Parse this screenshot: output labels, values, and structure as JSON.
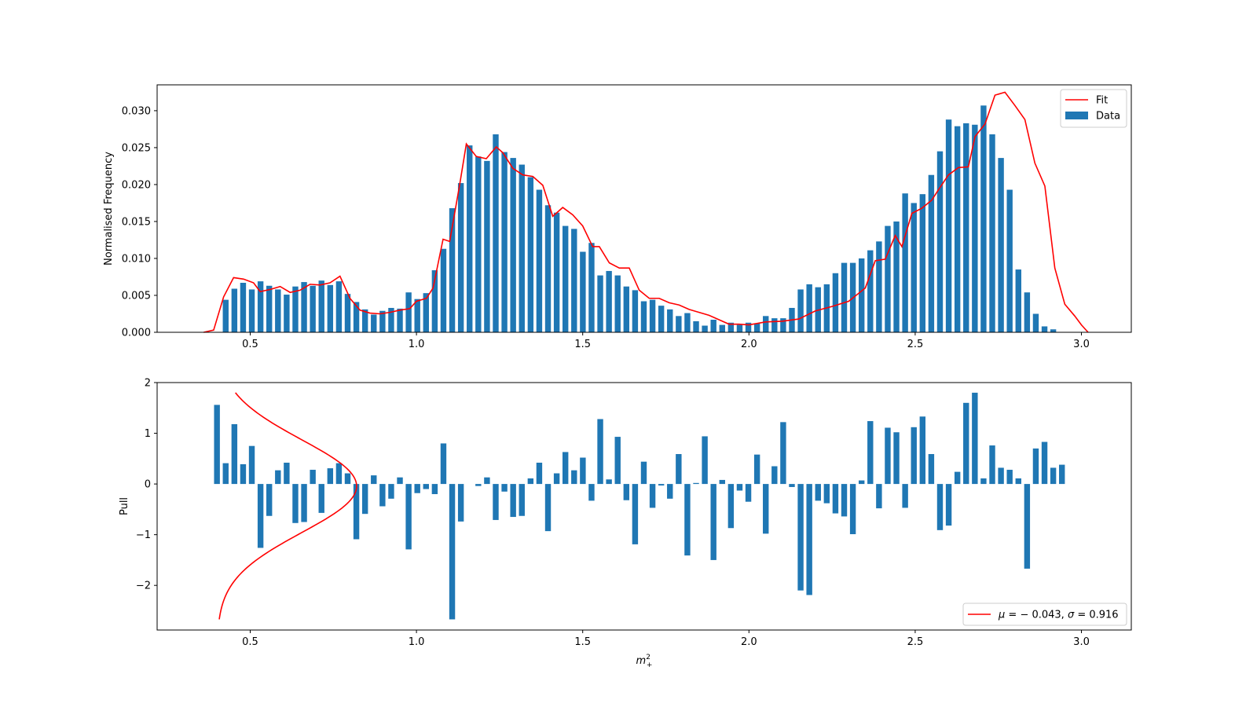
{
  "chart_data": [
    {
      "type": "bar",
      "panel": "top",
      "title": "",
      "xlabel": "",
      "ylabel": "Normalised Frequency",
      "xlim": [
        0.22,
        3.15
      ],
      "ylim": [
        0.0,
        0.0335
      ],
      "xticks": [
        0.5,
        1.0,
        1.5,
        2.0,
        2.5,
        3.0
      ],
      "xtick_labels": [
        "0.5",
        "1.0",
        "1.5",
        "2.0",
        "2.5",
        "3.0"
      ],
      "yticks": [
        0.0,
        0.005,
        0.01,
        0.015,
        0.02,
        0.025,
        0.03
      ],
      "ytick_labels": [
        "0.000",
        "0.005",
        "0.010",
        "0.015",
        "0.020",
        "0.025",
        "0.030"
      ],
      "bar_width": 0.0175,
      "legend_position": "upper right",
      "series": [
        {
          "name": "Data",
          "kind": "bar",
          "color": "#1f77b4",
          "x_start": 0.4,
          "x_step": 0.0262,
          "values": [
            0.0,
            0.0044,
            0.0059,
            0.0067,
            0.0058,
            0.0069,
            0.0063,
            0.0058,
            0.0051,
            0.0062,
            0.0068,
            0.0063,
            0.007,
            0.0064,
            0.0069,
            0.0052,
            0.0041,
            0.0031,
            0.0024,
            0.0029,
            0.0033,
            0.0032,
            0.0054,
            0.0045,
            0.0053,
            0.0084,
            0.0113,
            0.0168,
            0.0202,
            0.0253,
            0.0238,
            0.0232,
            0.0268,
            0.0244,
            0.0236,
            0.0227,
            0.021,
            0.0193,
            0.0172,
            0.0162,
            0.0144,
            0.014,
            0.0109,
            0.0121,
            0.0077,
            0.0083,
            0.0077,
            0.0062,
            0.0057,
            0.0042,
            0.0044,
            0.0036,
            0.0031,
            0.0022,
            0.0026,
            0.0015,
            0.0009,
            0.0017,
            0.001,
            0.0013,
            0.001,
            0.0013,
            0.0012,
            0.0022,
            0.0019,
            0.0019,
            0.0033,
            0.0058,
            0.0065,
            0.0061,
            0.0065,
            0.008,
            0.0094,
            0.0094,
            0.01,
            0.0111,
            0.0123,
            0.0144,
            0.015,
            0.0188,
            0.0175,
            0.0187,
            0.0213,
            0.0245,
            0.0288,
            0.0279,
            0.0283,
            0.0281,
            0.0307,
            0.0268,
            0.0236,
            0.0193,
            0.0085,
            0.0054,
            0.0025,
            0.0008,
            0.0004,
            0.0
          ]
        },
        {
          "name": "Fit",
          "kind": "line",
          "color": "#ff0000",
          "x": [
            0.36,
            0.39,
            0.42,
            0.45,
            0.48,
            0.51,
            0.53,
            0.56,
            0.59,
            0.62,
            0.65,
            0.68,
            0.71,
            0.74,
            0.77,
            0.8,
            0.83,
            0.86,
            0.89,
            0.92,
            0.95,
            0.98,
            1.0,
            1.03,
            1.05,
            1.08,
            1.1,
            1.13,
            1.15,
            1.18,
            1.21,
            1.24,
            1.26,
            1.29,
            1.32,
            1.35,
            1.38,
            1.41,
            1.44,
            1.47,
            1.5,
            1.53,
            1.55,
            1.58,
            1.61,
            1.64,
            1.67,
            1.7,
            1.73,
            1.76,
            1.79,
            1.82,
            1.85,
            1.88,
            1.91,
            1.94,
            1.97,
            2.0,
            2.05,
            2.1,
            2.15,
            2.2,
            2.25,
            2.3,
            2.35,
            2.38,
            2.41,
            2.44,
            2.46,
            2.49,
            2.52,
            2.55,
            2.57,
            2.6,
            2.63,
            2.66,
            2.68,
            2.71,
            2.74,
            2.77,
            2.8,
            2.83,
            2.86,
            2.89,
            2.92,
            2.95,
            2.98,
            3.0,
            3.02
          ],
          "values": [
            0.0,
            0.0003,
            0.0048,
            0.0074,
            0.0072,
            0.0067,
            0.0055,
            0.0058,
            0.0062,
            0.0054,
            0.0057,
            0.0065,
            0.0064,
            0.0067,
            0.0076,
            0.0046,
            0.003,
            0.0026,
            0.0025,
            0.0027,
            0.003,
            0.0032,
            0.0042,
            0.0046,
            0.006,
            0.0126,
            0.0123,
            0.02,
            0.0255,
            0.0238,
            0.0235,
            0.0251,
            0.0243,
            0.0222,
            0.0213,
            0.0211,
            0.0199,
            0.0157,
            0.0169,
            0.0159,
            0.0144,
            0.0116,
            0.0116,
            0.0094,
            0.0087,
            0.0087,
            0.0057,
            0.0046,
            0.0046,
            0.004,
            0.0037,
            0.0031,
            0.0027,
            0.0023,
            0.0017,
            0.0011,
            0.0011,
            0.001,
            0.0014,
            0.0015,
            0.0018,
            0.0029,
            0.0035,
            0.0042,
            0.006,
            0.0097,
            0.0099,
            0.0131,
            0.0116,
            0.0161,
            0.0168,
            0.0179,
            0.0193,
            0.0213,
            0.0223,
            0.0224,
            0.0265,
            0.0282,
            0.0321,
            0.0325,
            0.0307,
            0.0288,
            0.0229,
            0.0198,
            0.0087,
            0.0038,
            0.0022,
            0.001,
            0.0
          ]
        }
      ]
    },
    {
      "type": "bar",
      "panel": "bottom",
      "title": "",
      "xlabel": "m²₊",
      "ylabel": "Pull",
      "xlim": [
        0.22,
        3.15
      ],
      "ylim": [
        -2.88,
        2.0
      ],
      "xticks": [
        0.5,
        1.0,
        1.5,
        2.0,
        2.5,
        3.0
      ],
      "xtick_labels": [
        "0.5",
        "1.0",
        "1.5",
        "2.0",
        "2.5",
        "3.0"
      ],
      "yticks": [
        -2,
        -1,
        0,
        1,
        2
      ],
      "ytick_labels": [
        "−2",
        "−1",
        "0",
        "1",
        "2"
      ],
      "bar_width": 0.0175,
      "legend_position": "lower right",
      "series": [
        {
          "name": "Pull",
          "kind": "bar",
          "color": "#1f77b4",
          "x_start": 0.4,
          "x_step": 0.0262,
          "values": [
            1.56,
            0.41,
            1.18,
            0.39,
            0.75,
            -1.26,
            -0.63,
            0.27,
            0.42,
            -0.77,
            -0.75,
            0.28,
            -0.57,
            0.31,
            0.41,
            0.21,
            -1.09,
            -0.59,
            0.17,
            -0.44,
            -0.29,
            0.13,
            -1.29,
            -0.18,
            -0.1,
            -0.2,
            0.8,
            -2.67,
            -0.74,
            0.0,
            -0.04,
            0.13,
            -0.71,
            -0.15,
            -0.65,
            -0.63,
            0.11,
            0.42,
            -0.93,
            0.21,
            0.63,
            0.27,
            0.52,
            -0.33,
            1.28,
            0.09,
            0.93,
            -0.32,
            -1.19,
            0.44,
            -0.47,
            -0.03,
            -0.29,
            0.59,
            -1.41,
            0.02,
            0.94,
            -1.5,
            0.08,
            -0.87,
            -0.13,
            -0.35,
            0.58,
            -0.98,
            0.35,
            1.22,
            -0.06,
            -2.1,
            -2.19,
            -0.33,
            -0.38,
            -0.58,
            -0.64,
            -0.99,
            0.07,
            1.24,
            -0.48,
            1.11,
            1.02,
            -0.47,
            1.12,
            1.33,
            0.59,
            -0.91,
            -0.82,
            0.24,
            1.6,
            1.8,
            0.11,
            0.76,
            0.32,
            0.28,
            0.11,
            -1.67,
            0.7,
            0.83,
            0.32,
            0.38
          ]
        },
        {
          "name": "μ = −0.043, σ = 0.916",
          "kind": "gaussian-curve",
          "color": "#ff0000",
          "mu": -0.043,
          "sigma": 0.916,
          "x_base": 0.4,
          "x_peak": 0.82,
          "y_from": -2.67,
          "y_to": 1.8
        }
      ]
    }
  ],
  "legend": {
    "top": [
      {
        "label": "Fit",
        "swatch": "line",
        "color": "#ff0000"
      },
      {
        "label": "Data",
        "swatch": "patch",
        "color": "#1f77b4"
      }
    ],
    "bottom": [
      {
        "label_prefix": "μ",
        "label_eq1": " = − 0.043, ",
        "label_sigma": "σ",
        "label_eq2": " = 0.916",
        "swatch": "line",
        "color": "#ff0000"
      }
    ]
  },
  "labels": {
    "top_ylabel": "Normalised Frequency",
    "bottom_ylabel": "Pull",
    "xlabel_base": "m",
    "xlabel_sup": "2",
    "xlabel_sub": "+"
  }
}
